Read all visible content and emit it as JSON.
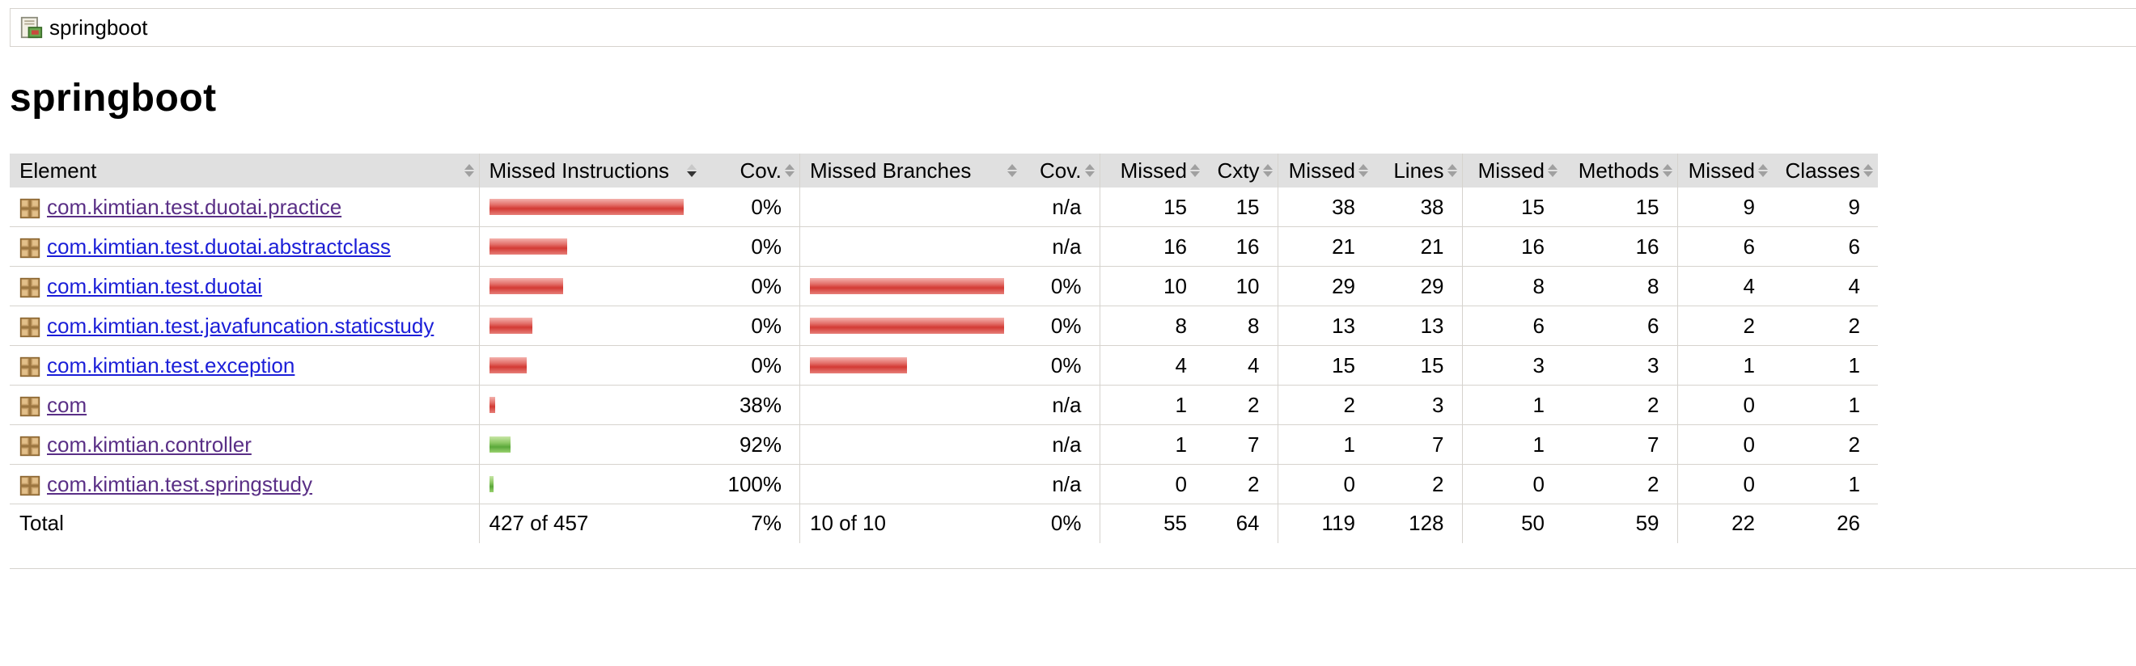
{
  "breadcrumb": {
    "label": "springboot",
    "icon": "session-icon"
  },
  "title": "springboot",
  "columns": [
    {
      "label": "Element",
      "sort": "none"
    },
    {
      "label": "Missed Instructions",
      "sort": "desc"
    },
    {
      "label": "Cov.",
      "sort": "none"
    },
    {
      "label": "Missed Branches",
      "sort": "none"
    },
    {
      "label": "Cov.",
      "sort": "none"
    },
    {
      "label": "Missed",
      "sort": "none"
    },
    {
      "label": "Cxty",
      "sort": "none"
    },
    {
      "label": "Missed",
      "sort": "none"
    },
    {
      "label": "Lines",
      "sort": "none"
    },
    {
      "label": "Missed",
      "sort": "none"
    },
    {
      "label": "Methods",
      "sort": "none"
    },
    {
      "label": "Missed",
      "sort": "none"
    },
    {
      "label": "Classes",
      "sort": "none"
    }
  ],
  "rows": [
    {
      "name": "com.kimtian.test.duotai.practice",
      "visited": true,
      "instr_bar": {
        "color": "red",
        "level": 1.0
      },
      "instr_cov": "0%",
      "branch_bar": null,
      "branch_cov": "n/a",
      "cxty_missed": "15",
      "cxty": "15",
      "lines_missed": "38",
      "lines": "38",
      "methods_missed": "15",
      "methods": "15",
      "classes_missed": "9",
      "classes": "9"
    },
    {
      "name": "com.kimtian.test.duotai.abstractclass",
      "visited": false,
      "instr_bar": {
        "color": "red",
        "level": 0.4
      },
      "instr_cov": "0%",
      "branch_bar": null,
      "branch_cov": "n/a",
      "cxty_missed": "16",
      "cxty": "16",
      "lines_missed": "21",
      "lines": "21",
      "methods_missed": "16",
      "methods": "16",
      "classes_missed": "6",
      "classes": "6"
    },
    {
      "name": "com.kimtian.test.duotai",
      "visited": false,
      "instr_bar": {
        "color": "red",
        "level": 0.38
      },
      "instr_cov": "0%",
      "branch_bar": {
        "color": "red",
        "level": 1.0
      },
      "branch_cov": "0%",
      "cxty_missed": "10",
      "cxty": "10",
      "lines_missed": "29",
      "lines": "29",
      "methods_missed": "8",
      "methods": "8",
      "classes_missed": "4",
      "classes": "4"
    },
    {
      "name": "com.kimtian.test.javafuncation.staticstudy",
      "visited": false,
      "instr_bar": {
        "color": "red",
        "level": 0.22
      },
      "instr_cov": "0%",
      "branch_bar": {
        "color": "red",
        "level": 1.0
      },
      "branch_cov": "0%",
      "cxty_missed": "8",
      "cxty": "8",
      "lines_missed": "13",
      "lines": "13",
      "methods_missed": "6",
      "methods": "6",
      "classes_missed": "2",
      "classes": "2"
    },
    {
      "name": "com.kimtian.test.exception",
      "visited": false,
      "instr_bar": {
        "color": "red",
        "level": 0.19
      },
      "instr_cov": "0%",
      "branch_bar": {
        "color": "red",
        "level": 0.5
      },
      "branch_cov": "0%",
      "cxty_missed": "4",
      "cxty": "4",
      "lines_missed": "15",
      "lines": "15",
      "methods_missed": "3",
      "methods": "3",
      "classes_missed": "1",
      "classes": "1"
    },
    {
      "name": "com",
      "visited": true,
      "instr_bar": {
        "color": "red",
        "level": 0.03
      },
      "instr_cov": "38%",
      "branch_bar": null,
      "branch_cov": "n/a",
      "cxty_missed": "1",
      "cxty": "2",
      "lines_missed": "2",
      "lines": "3",
      "methods_missed": "1",
      "methods": "2",
      "classes_missed": "0",
      "classes": "1"
    },
    {
      "name": "com.kimtian.controller",
      "visited": true,
      "instr_bar": {
        "color": "green",
        "level": 0.11
      },
      "instr_cov": "92%",
      "branch_bar": null,
      "branch_cov": "n/a",
      "cxty_missed": "1",
      "cxty": "7",
      "lines_missed": "1",
      "lines": "7",
      "methods_missed": "1",
      "methods": "7",
      "classes_missed": "0",
      "classes": "2"
    },
    {
      "name": "com.kimtian.test.springstudy",
      "visited": true,
      "instr_bar": {
        "color": "green",
        "level": 0.02
      },
      "instr_cov": "100%",
      "branch_bar": null,
      "branch_cov": "n/a",
      "cxty_missed": "0",
      "cxty": "2",
      "lines_missed": "0",
      "lines": "2",
      "methods_missed": "0",
      "methods": "2",
      "classes_missed": "0",
      "classes": "1"
    }
  ],
  "total": {
    "label": "Total",
    "instr": "427 of 457",
    "instr_cov": "7%",
    "branch": "10 of 10",
    "branch_cov": "0%",
    "cxty_missed": "55",
    "cxty": "64",
    "lines_missed": "119",
    "lines": "128",
    "methods_missed": "50",
    "methods": "59",
    "classes_missed": "22",
    "classes": "26"
  },
  "colors": {
    "header_bg": "#e0e0e0",
    "link": "#1b1ed8",
    "visited_link": "#5a2f86",
    "bar_red": "#d33a34",
    "bar_green": "#5aa83a",
    "border": "#d6d3ce"
  }
}
